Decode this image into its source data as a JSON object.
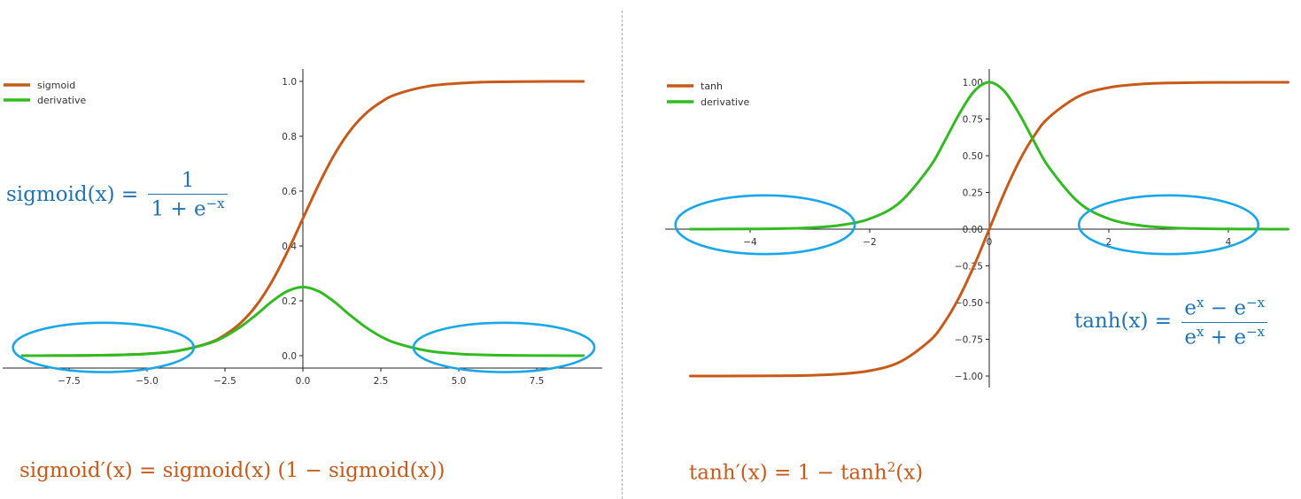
{
  "colors": {
    "function_curve": "#c85a19",
    "derivative_curve": "#31bb21",
    "highlight_ellipse": "#1aa7ea",
    "formula_blue": "#1f73b7",
    "formula_orange": "#c85a19"
  },
  "chart_data": [
    {
      "type": "line",
      "title": "",
      "xlabel": "",
      "ylabel": "",
      "xlim": [
        -9.0,
        9.0
      ],
      "ylim": [
        -0.05,
        1.05
      ],
      "x_ticks": [
        -7.5,
        -5.0,
        -2.5,
        0.0,
        2.5,
        5.0,
        7.5
      ],
      "x_tick_labels": [
        "−7.5",
        "−5.0",
        "−2.5",
        "0.0",
        "2.5",
        "5.0",
        "7.5"
      ],
      "y_ticks": [
        0.0,
        0.2,
        0.4,
        0.6,
        0.8,
        1.0
      ],
      "y_tick_labels": [
        "0.0",
        "0.2",
        "0.4",
        "0.6",
        "0.8",
        "1.0"
      ],
      "grid": false,
      "legend_position": "top-left",
      "series": [
        {
          "name": "sigmoid",
          "color": "#c85a19",
          "x": [
            -9,
            -8,
            -7,
            -6,
            -5,
            -4,
            -3,
            -2.5,
            -2,
            -1.5,
            -1,
            -0.5,
            0,
            0.5,
            1,
            1.5,
            2,
            2.5,
            3,
            4,
            5,
            6,
            7,
            8,
            9
          ],
          "y": [
            0.0001,
            0.0003,
            0.0009,
            0.0025,
            0.0067,
            0.018,
            0.047,
            0.076,
            0.119,
            0.182,
            0.269,
            0.378,
            0.5,
            0.622,
            0.731,
            0.818,
            0.881,
            0.924,
            0.953,
            0.982,
            0.993,
            0.998,
            0.999,
            1.0,
            1.0
          ]
        },
        {
          "name": "derivative",
          "color": "#31bb21",
          "x": [
            -9,
            -8,
            -7,
            -6,
            -5,
            -4,
            -3,
            -2.5,
            -2,
            -1.5,
            -1,
            -0.5,
            0,
            0.5,
            1,
            1.5,
            2,
            2.5,
            3,
            4,
            5,
            6,
            7,
            8,
            9
          ],
          "y": [
            0.0001,
            0.0003,
            0.0009,
            0.0025,
            0.0066,
            0.0177,
            0.0452,
            0.0701,
            0.105,
            0.149,
            0.197,
            0.235,
            0.25,
            0.235,
            0.197,
            0.149,
            0.105,
            0.0701,
            0.0452,
            0.0177,
            0.0066,
            0.0025,
            0.0009,
            0.0003,
            0.0001
          ]
        }
      ],
      "highlight_regions": [
        {
          "x_center": -6.4,
          "y_center": 0.03,
          "x_radius": 2.9,
          "y_radius": 0.09
        },
        {
          "x_center": 6.45,
          "y_center": 0.03,
          "x_radius": 2.9,
          "y_radius": 0.09
        }
      ]
    },
    {
      "type": "line",
      "title": "",
      "xlabel": "",
      "ylabel": "",
      "xlim": [
        -5.0,
        5.0
      ],
      "ylim": [
        -1.1,
        1.1
      ],
      "x_ticks": [
        -4,
        -2,
        0,
        2,
        4
      ],
      "x_tick_labels": [
        "−4",
        "−2",
        "0",
        "2",
        "4"
      ],
      "y_ticks": [
        -1.0,
        -0.75,
        -0.5,
        -0.25,
        0.0,
        0.25,
        0.5,
        0.75,
        1.0
      ],
      "y_tick_labels": [
        "−1.00",
        "−0.75",
        "−0.50",
        "−0.25",
        "0.00",
        "0.25",
        "0.50",
        "0.75",
        "1.00"
      ],
      "grid": false,
      "legend_position": "top-left",
      "series": [
        {
          "name": "tanh",
          "color": "#c85a19",
          "x": [
            -5,
            -4.5,
            -4,
            -3.5,
            -3,
            -2.5,
            -2,
            -1.5,
            -1,
            -0.75,
            -0.5,
            -0.25,
            0,
            0.25,
            0.5,
            0.75,
            1,
            1.5,
            2,
            2.5,
            3,
            3.5,
            4,
            4.5,
            5
          ],
          "y": [
            -0.9999,
            -0.9998,
            -0.9993,
            -0.9982,
            -0.9951,
            -0.9866,
            -0.964,
            -0.9051,
            -0.7616,
            -0.6351,
            -0.4621,
            -0.2449,
            0.0,
            0.2449,
            0.4621,
            0.6351,
            0.7616,
            0.9051,
            0.964,
            0.9866,
            0.9951,
            0.9982,
            0.9993,
            0.9998,
            0.9999
          ]
        },
        {
          "name": "derivative",
          "color": "#31bb21",
          "x": [
            -5,
            -4.5,
            -4,
            -3.5,
            -3,
            -2.5,
            -2,
            -1.5,
            -1,
            -0.75,
            -0.5,
            -0.25,
            0,
            0.25,
            0.5,
            0.75,
            1,
            1.5,
            2,
            2.5,
            3,
            3.5,
            4,
            4.5,
            5
          ],
          "y": [
            0.0002,
            0.0005,
            0.0013,
            0.0036,
            0.0099,
            0.0266,
            0.0707,
            0.1807,
            0.42,
            0.5966,
            0.7864,
            0.94,
            1.0,
            0.94,
            0.7864,
            0.5966,
            0.42,
            0.1807,
            0.0707,
            0.0266,
            0.0099,
            0.0036,
            0.0013,
            0.0005,
            0.0002
          ]
        }
      ],
      "highlight_regions": [
        {
          "x_center": -3.75,
          "y_center": 0.03,
          "x_radius": 1.5,
          "y_radius": 0.2
        },
        {
          "x_center": 3.0,
          "y_center": 0.03,
          "x_radius": 1.5,
          "y_radius": 0.2
        }
      ]
    }
  ],
  "formulas": {
    "sigmoid_lhs": "sigmoid(x) =",
    "sigmoid_num": "1",
    "sigmoid_den_base": "1 + e",
    "sigmoid_den_exp": "−x",
    "sigmoid_derivative": "sigmoid′(x) = sigmoid(x) (1 − sigmoid(x))",
    "tanh_lhs": "tanh(x) =",
    "tanh_num_b1": "e",
    "tanh_num_e1": "x",
    "tanh_num_mid": " − e",
    "tanh_num_e2": "−x",
    "tanh_den_b1": "e",
    "tanh_den_e1": "x",
    "tanh_den_mid": " + e",
    "tanh_den_e2": "−x",
    "tanh_derivative_a": "tanh′(x) = 1 − tanh",
    "tanh_derivative_sup": "2",
    "tanh_derivative_b": "(x)"
  }
}
